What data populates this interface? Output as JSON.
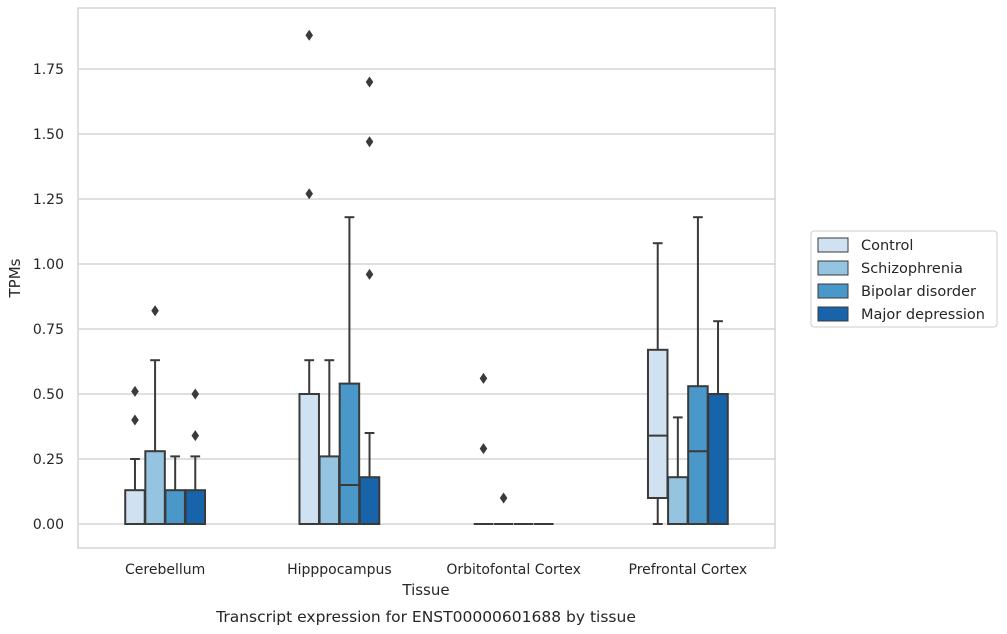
{
  "chart_data": {
    "type": "box",
    "title": "Transcript expression for ENST00000601688 by tissue",
    "xlabel": "Tissue",
    "ylabel": "TPMs",
    "ylim": [
      -0.09,
      1.97
    ],
    "yticks": [
      0.0,
      0.25,
      0.5,
      0.75,
      1.0,
      1.25,
      1.5,
      1.75
    ],
    "ytick_labels": [
      "0.00",
      "0.25",
      "0.50",
      "0.75",
      "1.00",
      "1.25",
      "1.50",
      "1.75"
    ],
    "grid": "horizontal",
    "legend_position": "right",
    "categories": [
      "Cerebellum",
      "Hipppocampus",
      "Orbitofontal Cortex",
      "Prefrontal Cortex"
    ],
    "series": [
      {
        "name": "Control",
        "color": "#d0e1f2",
        "boxes": [
          {
            "whislo": 0.0,
            "q1": 0.0,
            "med": 0.0,
            "q3": 0.13,
            "whishi": 0.25,
            "fliers": [
              0.4,
              0.51
            ]
          },
          {
            "whislo": 0.0,
            "q1": 0.0,
            "med": 0.0,
            "q3": 0.5,
            "whishi": 0.63,
            "fliers": [
              1.27,
              1.88
            ]
          },
          {
            "whislo": 0.0,
            "q1": 0.0,
            "med": 0.0,
            "q3": 0.0,
            "whishi": 0.0,
            "fliers": [
              0.29,
              0.56
            ]
          },
          {
            "whislo": 0.0,
            "q1": 0.1,
            "med": 0.34,
            "q3": 0.67,
            "whishi": 1.08,
            "fliers": []
          }
        ]
      },
      {
        "name": "Schizophrenia",
        "color": "#94c4df",
        "boxes": [
          {
            "whislo": 0.0,
            "q1": 0.0,
            "med": 0.0,
            "q3": 0.28,
            "whishi": 0.63,
            "fliers": [
              0.82
            ]
          },
          {
            "whislo": 0.0,
            "q1": 0.0,
            "med": 0.0,
            "q3": 0.26,
            "whishi": 0.63,
            "fliers": []
          },
          {
            "whislo": 0.0,
            "q1": 0.0,
            "med": 0.0,
            "q3": 0.0,
            "whishi": 0.0,
            "fliers": [
              0.1
            ]
          },
          {
            "whislo": 0.0,
            "q1": 0.0,
            "med": 0.0,
            "q3": 0.18,
            "whishi": 0.41,
            "fliers": []
          }
        ]
      },
      {
        "name": "Bipolar disorder",
        "color": "#4a98c9",
        "boxes": [
          {
            "whislo": 0.0,
            "q1": 0.0,
            "med": 0.0,
            "q3": 0.13,
            "whishi": 0.26,
            "fliers": []
          },
          {
            "whislo": 0.0,
            "q1": 0.0,
            "med": 0.15,
            "q3": 0.54,
            "whishi": 1.18,
            "fliers": []
          },
          {
            "whislo": 0.0,
            "q1": 0.0,
            "med": 0.0,
            "q3": 0.0,
            "whishi": 0.0,
            "fliers": []
          },
          {
            "whislo": 0.0,
            "q1": 0.0,
            "med": 0.28,
            "q3": 0.53,
            "whishi": 1.18,
            "fliers": []
          }
        ]
      },
      {
        "name": "Major depression",
        "color": "#1764ab",
        "boxes": [
          {
            "whislo": 0.0,
            "q1": 0.0,
            "med": 0.0,
            "q3": 0.13,
            "whishi": 0.26,
            "fliers": [
              0.34,
              0.5
            ]
          },
          {
            "whislo": 0.0,
            "q1": 0.0,
            "med": 0.0,
            "q3": 0.18,
            "whishi": 0.35,
            "fliers": [
              0.96,
              1.47,
              1.7
            ]
          },
          {
            "whislo": 0.0,
            "q1": 0.0,
            "med": 0.0,
            "q3": 0.0,
            "whishi": 0.0,
            "fliers": []
          },
          {
            "whislo": 0.0,
            "q1": 0.0,
            "med": 0.0,
            "q3": 0.5,
            "whishi": 0.78,
            "fliers": []
          }
        ]
      }
    ]
  }
}
